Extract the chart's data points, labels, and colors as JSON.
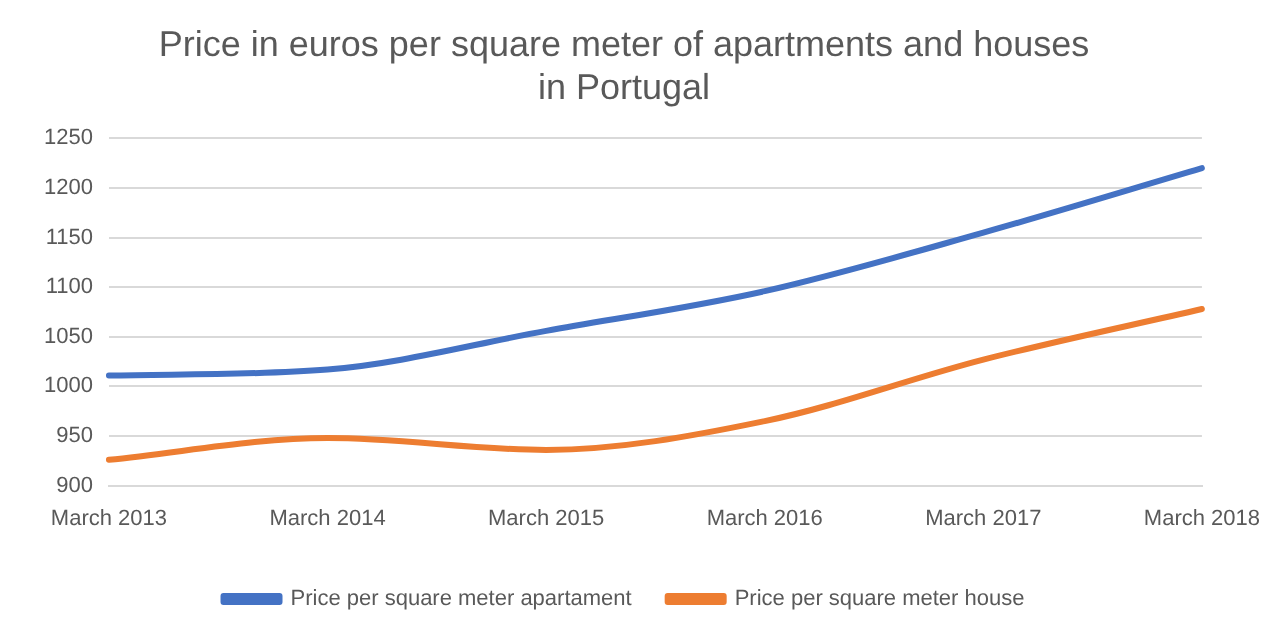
{
  "chart_data": {
    "type": "line",
    "title": "Price in euros per square meter of apartments and houses\nin Portugal",
    "categories": [
      "March 2013",
      "March 2014",
      "March 2015",
      "March 2016",
      "March 2017",
      "March 2018"
    ],
    "series": [
      {
        "name": "Price per square meter apartament",
        "color": "#4472c4",
        "values": [
          1011,
          1017,
          1056,
          1096,
          1155,
          1220
        ]
      },
      {
        "name": "Price per square meter house",
        "color": "#ed7d31",
        "values": [
          926,
          948,
          936,
          965,
          1027,
          1078
        ]
      }
    ],
    "ylim": [
      900,
      1250
    ],
    "yticks": [
      900,
      950,
      1000,
      1050,
      1100,
      1150,
      1200,
      1250
    ],
    "grid": "y",
    "legend": "bottom",
    "marker": "none",
    "line_style": "solid"
  }
}
